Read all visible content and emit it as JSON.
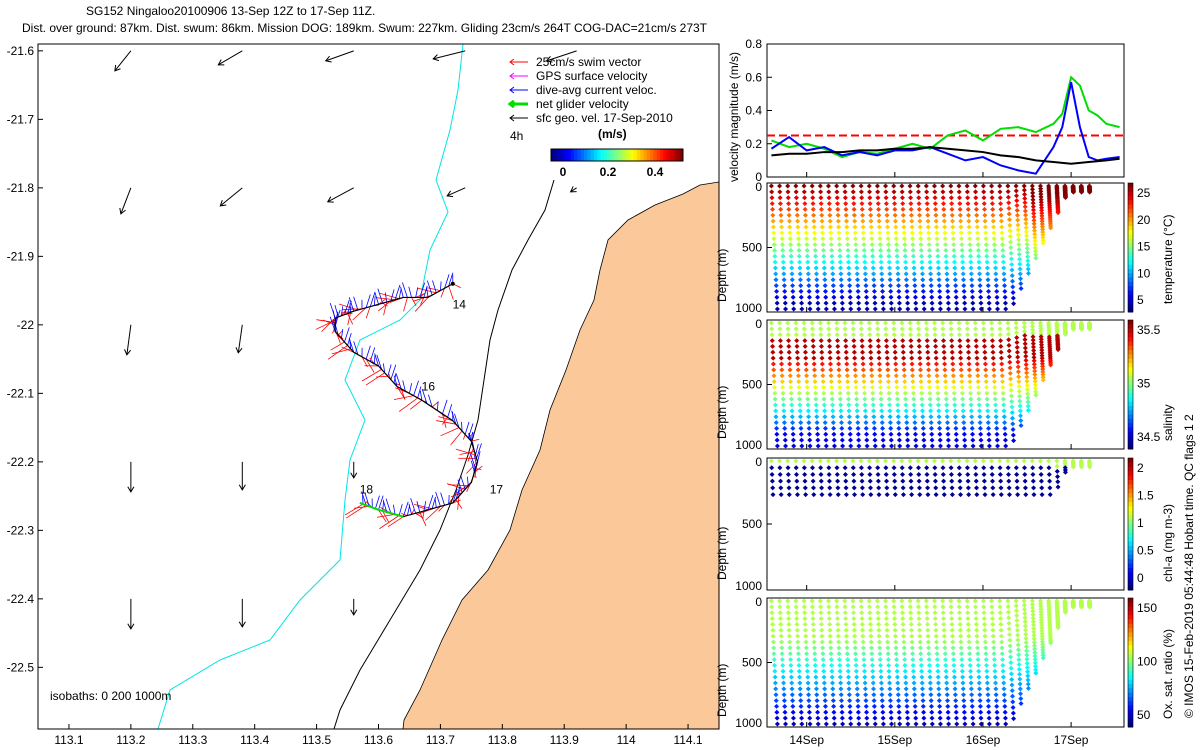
{
  "header": {
    "title_line1": "SG152 Ningaloo20100906 13-Sep 12Z to 17-Sep 11Z.",
    "title_line2": "Dist. over ground: 87km. Dist. swum: 86km. Mission DOG: 189km. Swum: 227km. Gliding 23cm/s 264T COG-DAC=21cm/s 273T"
  },
  "colors": {
    "land": "#FBC89A",
    "isobath_shallow": "#00E5E5",
    "isobath_deep": "#000000",
    "swim": "#FF0000",
    "gps": "#FF00FF",
    "dac": "#0000FF",
    "net": "#00DD00",
    "geo": "#000000"
  },
  "chart_data": [
    {
      "type": "map",
      "name": "track-map",
      "xlim": [
        113.05,
        114.15
      ],
      "ylim": [
        -22.59,
        -21.59
      ],
      "xticks": [
        113.1,
        113.2,
        113.3,
        113.4,
        113.5,
        113.6,
        113.7,
        113.8,
        113.9,
        114,
        114.1
      ],
      "yticks": [
        -21.6,
        -21.7,
        -21.8,
        -21.9,
        -22,
        -22.1,
        -22.2,
        -22.3,
        -22.4,
        -22.5
      ],
      "legend": {
        "items": [
          "25cm/s swim vector",
          "GPS surface velocity",
          "dive-avg current veloc.",
          "net glider velocity",
          "sfc geo. vel. 17-Sep-2010"
        ],
        "time_label": "4h",
        "colorbar_label": "(m/s)",
        "colorbar_ticks": [
          "0",
          "0.2",
          "0.4"
        ]
      },
      "isobath_note": "isobaths: 0   200  1000m",
      "day_labels": [
        {
          "text": "14",
          "lon": 113.71,
          "lat": -21.97
        },
        {
          "text": "16",
          "lon": 113.66,
          "lat": -22.09
        },
        {
          "text": "17",
          "lon": 113.77,
          "lat": -22.24
        },
        {
          "text": "18",
          "lon": 113.56,
          "lat": -22.24
        }
      ],
      "track": [
        [
          113.72,
          -21.94
        ],
        [
          113.68,
          -21.96
        ],
        [
          113.64,
          -21.96
        ],
        [
          113.6,
          -21.97
        ],
        [
          113.56,
          -21.98
        ],
        [
          113.53,
          -21.99
        ],
        [
          113.53,
          -22.01
        ],
        [
          113.56,
          -22.04
        ],
        [
          113.6,
          -22.06
        ],
        [
          113.63,
          -22.09
        ],
        [
          113.67,
          -22.11
        ],
        [
          113.72,
          -22.14
        ],
        [
          113.75,
          -22.17
        ],
        [
          113.76,
          -22.2
        ],
        [
          113.75,
          -22.23
        ],
        [
          113.72,
          -22.26
        ],
        [
          113.68,
          -22.27
        ],
        [
          113.64,
          -22.28
        ],
        [
          113.6,
          -22.27
        ],
        [
          113.57,
          -22.26
        ]
      ],
      "geo_vectors": [
        {
          "lon": 113.2,
          "lat": -21.6,
          "u": -0.08,
          "v": -0.1
        },
        {
          "lon": 113.38,
          "lat": -21.6,
          "u": -0.12,
          "v": -0.07
        },
        {
          "lon": 113.56,
          "lat": -21.6,
          "u": -0.14,
          "v": -0.05
        },
        {
          "lon": 113.74,
          "lat": -21.6,
          "u": -0.16,
          "v": -0.04
        },
        {
          "lon": 113.92,
          "lat": -21.6,
          "u": -0.15,
          "v": -0.05
        },
        {
          "lon": 113.2,
          "lat": -21.8,
          "u": -0.05,
          "v": -0.13
        },
        {
          "lon": 113.38,
          "lat": -21.8,
          "u": -0.11,
          "v": -0.09
        },
        {
          "lon": 113.56,
          "lat": -21.8,
          "u": -0.13,
          "v": -0.07
        },
        {
          "lon": 113.74,
          "lat": -21.8,
          "u": -0.09,
          "v": -0.04
        },
        {
          "lon": 113.92,
          "lat": -21.8,
          "u": -0.03,
          "v": -0.02
        },
        {
          "lon": 113.2,
          "lat": -22.0,
          "u": -0.02,
          "v": -0.15
        },
        {
          "lon": 113.38,
          "lat": -22.0,
          "u": -0.02,
          "v": -0.14
        },
        {
          "lon": 113.2,
          "lat": -22.2,
          "u": 0.0,
          "v": -0.15
        },
        {
          "lon": 113.38,
          "lat": -22.2,
          "u": 0.0,
          "v": -0.14
        },
        {
          "lon": 113.56,
          "lat": -22.2,
          "u": 0.0,
          "v": -0.08
        },
        {
          "lon": 113.2,
          "lat": -22.4,
          "u": 0.0,
          "v": -0.15
        },
        {
          "lon": 113.38,
          "lat": -22.4,
          "u": 0.0,
          "v": -0.14
        },
        {
          "lon": 113.56,
          "lat": -22.4,
          "u": 0.0,
          "v": -0.08
        }
      ]
    },
    {
      "type": "line",
      "name": "velocity-panel",
      "ylabel": "velocity magnitude (m/s)",
      "ylim": [
        0,
        0.8
      ],
      "yticks": [
        "0",
        "0.2",
        "0.4",
        "0.6",
        "0.8"
      ],
      "xlim": [
        13.55,
        17.6
      ],
      "series": [
        {
          "name": "swim reference",
          "color": "#FF0000",
          "style": "dashed",
          "x": [
            13.55,
            17.6
          ],
          "values": [
            0.25,
            0.25
          ]
        },
        {
          "name": "net glider velocity",
          "color": "#00DD00",
          "x": [
            13.6,
            13.8,
            14.0,
            14.2,
            14.4,
            14.6,
            14.8,
            15.0,
            15.2,
            15.4,
            15.6,
            15.8,
            16.0,
            16.2,
            16.4,
            16.6,
            16.8,
            16.9,
            17.0,
            17.1,
            17.2,
            17.3,
            17.4,
            17.55
          ],
          "values": [
            0.22,
            0.18,
            0.2,
            0.17,
            0.12,
            0.15,
            0.14,
            0.17,
            0.2,
            0.17,
            0.25,
            0.28,
            0.22,
            0.29,
            0.3,
            0.27,
            0.32,
            0.38,
            0.6,
            0.55,
            0.4,
            0.37,
            0.32,
            0.3
          ]
        },
        {
          "name": "dive-avg current",
          "color": "#0000FF",
          "x": [
            13.6,
            13.8,
            14.0,
            14.2,
            14.4,
            14.6,
            14.8,
            15.0,
            15.2,
            15.4,
            15.6,
            15.8,
            16.0,
            16.2,
            16.4,
            16.6,
            16.8,
            16.9,
            17.0,
            17.1,
            17.2,
            17.3,
            17.4,
            17.55
          ],
          "values": [
            0.17,
            0.24,
            0.16,
            0.18,
            0.13,
            0.15,
            0.13,
            0.16,
            0.16,
            0.18,
            0.14,
            0.1,
            0.12,
            0.07,
            0.04,
            0.02,
            0.18,
            0.3,
            0.57,
            0.3,
            0.12,
            0.1,
            0.11,
            0.12
          ]
        },
        {
          "name": "sfc geo. vel.",
          "color": "#000000",
          "x": [
            13.6,
            13.8,
            14.0,
            14.2,
            14.4,
            14.6,
            14.8,
            15.0,
            15.2,
            15.4,
            15.6,
            15.8,
            16.0,
            16.2,
            16.4,
            16.6,
            16.8,
            17.0,
            17.2,
            17.4,
            17.55
          ],
          "values": [
            0.13,
            0.14,
            0.14,
            0.15,
            0.15,
            0.16,
            0.16,
            0.17,
            0.17,
            0.18,
            0.17,
            0.16,
            0.15,
            0.13,
            0.12,
            0.1,
            0.09,
            0.08,
            0.09,
            0.1,
            0.11
          ]
        }
      ]
    },
    {
      "type": "scatter",
      "name": "temperature-section",
      "ylabel": "Depth (m)",
      "cblabel": "temperature (°C)",
      "ylim": [
        1000,
        0
      ],
      "yticks": [
        "0",
        "500",
        "1000"
      ],
      "cbticks": [
        "25",
        "20",
        "15",
        "10",
        "5"
      ],
      "cmap": "jet"
    },
    {
      "type": "scatter",
      "name": "salinity-section",
      "ylabel": "Depth (m)",
      "cblabel": "salinity",
      "ylim": [
        1000,
        0
      ],
      "yticks": [
        "0",
        "500",
        "1000"
      ],
      "cbticks": [
        "35.5",
        "35",
        "34.5"
      ],
      "cmap": "jet"
    },
    {
      "type": "scatter",
      "name": "chla-section",
      "ylabel": "Depth (m)",
      "cblabel": "chl-a (mg m-3)",
      "ylim": [
        1000,
        0
      ],
      "yticks": [
        "0",
        "500",
        "1000"
      ],
      "cbticks": [
        "2",
        "1.5",
        "1",
        "0.5",
        "0"
      ],
      "cmap": "jet"
    },
    {
      "type": "scatter",
      "name": "oxygen-section",
      "ylabel": "Depth (m)",
      "cblabel": "Ox. sat. ratio (%)",
      "ylim": [
        1000,
        0
      ],
      "yticks": [
        "0",
        "500",
        "1000"
      ],
      "cbticks": [
        "150",
        "100",
        "50"
      ],
      "cmap": "jet",
      "xticks": [
        "14Sep",
        "15Sep",
        "16Sep",
        "17Sep"
      ]
    }
  ],
  "footer": {
    "right_note": "© IMOS 15-Feb-2019 05:44:48 Hobart time. QC flags 1  2"
  }
}
